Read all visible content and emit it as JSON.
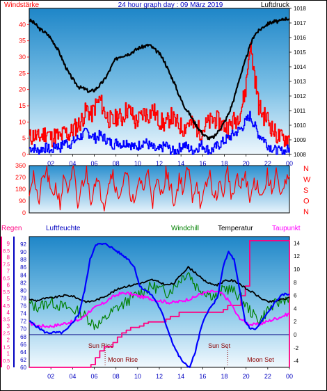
{
  "chart_data": [
    {
      "type": "line",
      "title": "24 hour graph day : 09 März 2019",
      "left_label": "Windstärke",
      "right_label": "Luftdruck",
      "y_left": {
        "ylim": [
          0,
          45
        ],
        "ticks": [
          0,
          5,
          10,
          15,
          20,
          25,
          30,
          35,
          40
        ]
      },
      "y_right": {
        "ylim": [
          1008,
          1018
        ],
        "ticks": [
          1008,
          1009,
          1010,
          1011,
          1012,
          1013,
          1014,
          1015,
          1016,
          1017,
          1018
        ]
      },
      "x_ticks": [
        "02",
        "04",
        "06",
        "08",
        "10",
        "12",
        "14",
        "16",
        "18",
        "20",
        "22",
        "00"
      ],
      "series": [
        {
          "key": "gust",
          "color": "#ff0000",
          "values": [
            5,
            6,
            5,
            6,
            7,
            5,
            6,
            5,
            7,
            6,
            8,
            9,
            11,
            14,
            12,
            15,
            17,
            13,
            11,
            10,
            12,
            11,
            14,
            13,
            10,
            11,
            13,
            12,
            14,
            11,
            10,
            9,
            12,
            10,
            9,
            8,
            10,
            9,
            8,
            7,
            9,
            10,
            11,
            10,
            9,
            8,
            10,
            11,
            14,
            20,
            34,
            25,
            15,
            12,
            11,
            8,
            6,
            5,
            5,
            5
          ]
        },
        {
          "key": "wind",
          "color": "#0000ff",
          "values": [
            2,
            2,
            1,
            2,
            2,
            1,
            3,
            2,
            4,
            3,
            4,
            5,
            6,
            7,
            6,
            5,
            6,
            5,
            4,
            3,
            4,
            3,
            4,
            3,
            2,
            3,
            4,
            3,
            2,
            1,
            2,
            3,
            1,
            1,
            2,
            3,
            2,
            1,
            2,
            3,
            2,
            1,
            2,
            3,
            4,
            5,
            6,
            7,
            8,
            10,
            12,
            9,
            6,
            5,
            3,
            2,
            1,
            1,
            1,
            2
          ]
        },
        {
          "key": "pressure",
          "color": "#000000",
          "values": [
            1017.2,
            1017.0,
            1016.6,
            1016.4,
            1016.1,
            1015.6,
            1015.0,
            1014.2,
            1013.5,
            1013.0,
            1012.6,
            1012.5,
            1012.3,
            1012.4,
            1012.7,
            1013.1,
            1013.7,
            1014.4,
            1014.7,
            1014.8,
            1014.9,
            1015.1,
            1015.3,
            1015.4,
            1015.5,
            1015.2,
            1014.9,
            1014.4,
            1013.6,
            1012.9,
            1012.0,
            1011.3,
            1010.8,
            1010.2,
            1009.7,
            1009.3,
            1009.1,
            1009.2,
            1009.7,
            1010.2,
            1010.9,
            1011.9,
            1013.2,
            1014.2,
            1015.3,
            1016.2,
            1016.5,
            1016.8,
            1017.0,
            1017.1,
            1017.1,
            1017.3,
            1017.3
          ]
        }
      ]
    },
    {
      "type": "line",
      "title": "",
      "y_left": {
        "ylim": [
          0,
          360
        ],
        "ticks": [
          0,
          90,
          180,
          270,
          360
        ]
      },
      "right_labels": [
        "N",
        "W",
        "S",
        "O",
        "N"
      ],
      "series": [
        {
          "key": "direction",
          "color": "#ff0000",
          "values": [
            180,
            300,
            60,
            250,
            330,
            120,
            200,
            80,
            290,
            150,
            340,
            40,
            220,
            310,
            100,
            260,
            180,
            70,
            240,
            320,
            110,
            200,
            290,
            150,
            50,
            270,
            180,
            330,
            90,
            230,
            140,
            310,
            200,
            60,
            280,
            170,
            350,
            120,
            250,
            30,
            190,
            300,
            80,
            220,
            150,
            340,
            100,
            260,
            180,
            310,
            70,
            240,
            200,
            130,
            290,
            160,
            330,
            90,
            210,
            280
          ]
        }
      ]
    },
    {
      "type": "line",
      "labels": {
        "rain": "Regen",
        "humidity": "Luftfeuchte",
        "windchill": "Windchill",
        "temperature": "Temperatur",
        "dewpoint": "Taupunkt"
      },
      "y_rain": {
        "ylim": [
          0,
          9.5
        ],
        "ticks": [
          0,
          0.5,
          1,
          1.5,
          2,
          2.5,
          3,
          3.5,
          4,
          4.5,
          5,
          5.5,
          6,
          6.5,
          7,
          7.5,
          8,
          8.5,
          9
        ]
      },
      "y_humidity": {
        "ylim": [
          60,
          94
        ],
        "ticks": [
          60,
          62,
          64,
          66,
          68,
          70,
          72,
          74,
          76,
          78,
          80,
          82,
          84,
          86,
          88,
          90,
          92
        ]
      },
      "y_temperature": {
        "ylim": [
          -5,
          15
        ],
        "ticks": [
          -4,
          -2,
          0,
          2,
          4,
          6,
          8,
          10,
          12,
          14
        ]
      },
      "x_ticks": [
        "02",
        "04",
        "06",
        "08",
        "10",
        "12",
        "14",
        "16",
        "18",
        "20",
        "22",
        "00"
      ],
      "annotations": [
        {
          "label": "Sun Rise",
          "hour": 7.0
        },
        {
          "label": "Moon Rise",
          "hour": 7.0
        },
        {
          "label": "Sun Set",
          "hour": 18.3
        },
        {
          "label": "Moon Set",
          "hour": 18.3
        }
      ],
      "series": [
        {
          "key": "humidity",
          "color": "#0000ff",
          "values": [
            72,
            71,
            70,
            69,
            69,
            69,
            69,
            70,
            72,
            74,
            80,
            88,
            92,
            92,
            92,
            91,
            90,
            89,
            88,
            86,
            81,
            80,
            79,
            77,
            74,
            70,
            66,
            63,
            61,
            60,
            64,
            70,
            74,
            76,
            78,
            86,
            90,
            88,
            80,
            72,
            70,
            70,
            72,
            74,
            76,
            78,
            79,
            79
          ]
        },
        {
          "key": "temperature",
          "color": "#000000",
          "values": [
            5.4,
            5.2,
            5.5,
            5.6,
            5.8,
            6.0,
            5.9,
            5.4,
            5.0,
            5.2,
            5.6,
            6.2,
            6.8,
            7.3,
            7.5,
            7.8,
            8.0,
            8.4,
            8.0,
            7.6,
            7.8,
            9.2,
            10.3,
            9.5,
            8.4,
            7.8,
            7.6,
            8.2,
            8.3,
            7.9,
            7.0,
            6.4,
            5.6,
            5.0,
            5.1,
            5.4,
            5.6
          ]
        },
        {
          "key": "windchill",
          "color": "#008000",
          "values": [
            4.7,
            4.2,
            4.6,
            5.0,
            4.5,
            4.2,
            3.8,
            3.4,
            2.6,
            1.5,
            1.8,
            3.0,
            4.0,
            4.6,
            5.5,
            6.2,
            6.8,
            7.4,
            7.0,
            6.4,
            7.2,
            8.6,
            9.6,
            7.5,
            6.8,
            6.2,
            5.8,
            7.2,
            6.8,
            6.0,
            4.5,
            3.0,
            2.2,
            3.8,
            4.6,
            5.3,
            5.8
          ]
        },
        {
          "key": "dewpoint",
          "color": "#ff00ff",
          "values": [
            1.8,
            1.4,
            1.3,
            1.3,
            1.5,
            1.8,
            2.0,
            2.4,
            3.5,
            4.2,
            4.8,
            5.6,
            6.2,
            6.4,
            6.1,
            5.8,
            5.6,
            5.3,
            5.1,
            4.9,
            5.0,
            5.3,
            5.6,
            6.2,
            6.5,
            6.6,
            6.2,
            5.0,
            2.9,
            1.9,
            1.5,
            1.6,
            2.0,
            2.4,
            2.8,
            3.2
          ]
        },
        {
          "key": "rain",
          "color": "#ff0080",
          "values": [
            0,
            0,
            0,
            0,
            0,
            0,
            0,
            0,
            0,
            0,
            0,
            0,
            0,
            0,
            0.2,
            0.7,
            1.2,
            1.5,
            1.5,
            1.8,
            2.2,
            2.5,
            2.7,
            2.9,
            2.9,
            3.0,
            3.2,
            3.3,
            3.3,
            3.3,
            3.3,
            3.5,
            3.7,
            3.7,
            4.0,
            4.0,
            4.0,
            4.0,
            4.0,
            4.0,
            4.0,
            4.0,
            4.0,
            4.0,
            4.2,
            4.5,
            4.5,
            4.5,
            5.2,
            5.9,
            9.2,
            9.2,
            9.2,
            9.2,
            9.2,
            9.2,
            9.2,
            9.2,
            9.2,
            0
          ]
        }
      ]
    }
  ]
}
